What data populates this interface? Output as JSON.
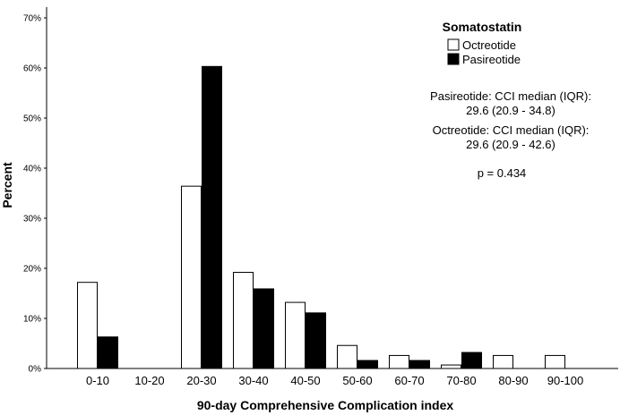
{
  "chart_data": {
    "type": "bar",
    "xlabel": "90-day Comprehensive Complication index",
    "ylabel": "Percent",
    "ylim": [
      0,
      70
    ],
    "yticks": [
      "0%",
      "10%",
      "20%",
      "30%",
      "40%",
      "50%",
      "60%",
      "70%"
    ],
    "ytick_values": [
      0,
      10,
      20,
      30,
      40,
      50,
      60,
      70
    ],
    "categories": [
      "0-10",
      "10-20",
      "20-30",
      "30-40",
      "40-50",
      "50-60",
      "60-70",
      "70-80",
      "80-90",
      "90-100"
    ],
    "legend": {
      "title": "Somatostatin",
      "placement": "top-right"
    },
    "series": [
      {
        "name": "Octreotide",
        "color": "#ffffff",
        "values": [
          17.2,
          0,
          36.4,
          19.2,
          13.2,
          4.6,
          2.6,
          0.7,
          2.6,
          2.6
        ]
      },
      {
        "name": "Pasireotide",
        "color": "#000000",
        "values": [
          6.3,
          0,
          60.3,
          15.9,
          11.1,
          1.6,
          1.6,
          3.2,
          0,
          0
        ]
      }
    ],
    "annotations": [
      "Pasireotide: CCI median (IQR):",
      "29.6 (20.9 - 34.8)",
      "Octreotide: CCI median (IQR):",
      "29.6 (20.9 - 42.6)",
      "p = 0.434"
    ]
  }
}
